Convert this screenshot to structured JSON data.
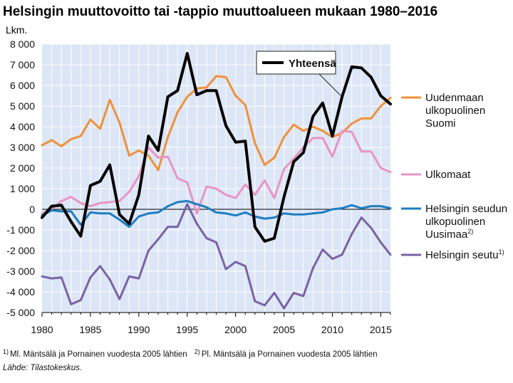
{
  "chart_data": {
    "type": "line",
    "title": "Helsingin muuttovoitto tai -tappio muuttoalueen mukaan 1980–2016",
    "ylabel": "Lkm.",
    "xlabel": "",
    "xlim": [
      1980,
      2016
    ],
    "ylim": [
      -5000,
      8000
    ],
    "grid": true,
    "x_ticks": [
      1980,
      1985,
      1990,
      1995,
      2000,
      2005,
      2010,
      2015
    ],
    "y_ticks": [
      {
        "v": 8000,
        "label": "8 000"
      },
      {
        "v": 7000,
        "label": "7 000"
      },
      {
        "v": 6000,
        "label": "6 000"
      },
      {
        "v": 5000,
        "label": "5 000"
      },
      {
        "v": 4000,
        "label": "4 000"
      },
      {
        "v": 3000,
        "label": "3 000"
      },
      {
        "v": 2000,
        "label": "2 000"
      },
      {
        "v": 1000,
        "label": "1 000"
      },
      {
        "v": 0,
        "label": "0"
      },
      {
        "v": -1000,
        "label": "-1 000"
      },
      {
        "v": -2000,
        "label": "-2 000"
      },
      {
        "v": -3000,
        "label": "-3 000"
      },
      {
        "v": -4000,
        "label": "-4 000"
      },
      {
        "v": -5000,
        "label": "-5 000"
      }
    ],
    "x": [
      1980,
      1981,
      1982,
      1983,
      1984,
      1985,
      1986,
      1987,
      1988,
      1989,
      1990,
      1991,
      1992,
      1993,
      1994,
      1995,
      1996,
      1997,
      1998,
      1999,
      2000,
      2001,
      2002,
      2003,
      2004,
      2005,
      2006,
      2007,
      2008,
      2009,
      2010,
      2011,
      2012,
      2013,
      2014,
      2015,
      2016
    ],
    "series": [
      {
        "key": "uudenmaan",
        "color": "#f0913a",
        "values": [
          3100,
          3350,
          3050,
          3400,
          3550,
          4350,
          3900,
          5300,
          4200,
          2600,
          2850,
          2600,
          1900,
          3500,
          4700,
          5450,
          5850,
          5900,
          6450,
          6400,
          5500,
          5050,
          3200,
          2150,
          2500,
          3500,
          4100,
          3800,
          4000,
          3800,
          3500,
          3700,
          4150,
          4400,
          4400,
          5000,
          5400
        ]
      },
      {
        "key": "ulkomaat",
        "color": "#e895c4",
        "values": [
          -200,
          0,
          400,
          600,
          300,
          150,
          300,
          350,
          400,
          850,
          1600,
          3000,
          2500,
          2550,
          1500,
          1300,
          -200,
          1100,
          1000,
          700,
          550,
          1200,
          700,
          1400,
          550,
          1950,
          2450,
          3000,
          3450,
          3450,
          2550,
          3800,
          3750,
          2800,
          2800,
          2000,
          1800
        ]
      },
      {
        "key": "uusimaa",
        "color": "#1e7dc2",
        "values": [
          -300,
          -50,
          -100,
          -100,
          -750,
          -150,
          -200,
          -200,
          -500,
          -850,
          -350,
          -200,
          -150,
          150,
          350,
          400,
          250,
          100,
          -150,
          -200,
          -300,
          -150,
          -350,
          -450,
          -400,
          -200,
          -250,
          -250,
          -200,
          -150,
          0,
          50,
          200,
          50,
          150,
          150,
          50
        ]
      },
      {
        "key": "seutu",
        "color": "#7a62a6",
        "values": [
          -3250,
          -3350,
          -3300,
          -4600,
          -4400,
          -3300,
          -2750,
          -3400,
          -4350,
          -3250,
          -3350,
          -2000,
          -1450,
          -850,
          -850,
          250,
          -700,
          -1400,
          -1600,
          -2900,
          -2550,
          -2750,
          -4450,
          -4650,
          -4050,
          -4800,
          -4050,
          -4200,
          -2850,
          -1950,
          -2400,
          -2200,
          -1200,
          -400,
          -900,
          -1600,
          -2200
        ]
      },
      {
        "key": "yhteensa",
        "color": "#000000",
        "values": [
          -400,
          150,
          200,
          -600,
          -1300,
          1150,
          1350,
          2150,
          -250,
          -700,
          700,
          3550,
          2850,
          5450,
          5750,
          7550,
          5550,
          5750,
          5750,
          4050,
          3250,
          3300,
          -850,
          -1550,
          -1400,
          600,
          2300,
          2750,
          4500,
          5150,
          3550,
          5450,
          6900,
          6850,
          6400,
          5500,
          5100
        ]
      }
    ],
    "legend": [
      {
        "key": "uudenmaan",
        "lines": [
          "Uudenmaan",
          "ulkopuolinen",
          "Suomi"
        ],
        "sup": ""
      },
      {
        "key": "ulkomaat",
        "lines": [
          "Ulkomaat"
        ],
        "sup": ""
      },
      {
        "key": "uusimaa",
        "lines": [
          "Helsingin seudun",
          "ulkopuolinen",
          "Uusimaa"
        ],
        "sup": "2)"
      },
      {
        "key": "seutu",
        "lines": [
          "Helsingin seutu"
        ],
        "sup": "1)"
      }
    ],
    "callout": {
      "key": "yhteensa",
      "label": "Yhteensä"
    },
    "footnote1_mark": "1)",
    "footnote1": "Ml. Mäntsälä ja Pornainen vuodesta 2005 lähtien",
    "footnote2_mark": "2)",
    "footnote2": "Pl. Mäntsälä ja Pornainen vuodesta 2005 lähtien",
    "source": "Lähde: Tilastokeskus.",
    "colors": {
      "plot_bg": "#dce6f6",
      "grid": "#ffffff"
    }
  }
}
